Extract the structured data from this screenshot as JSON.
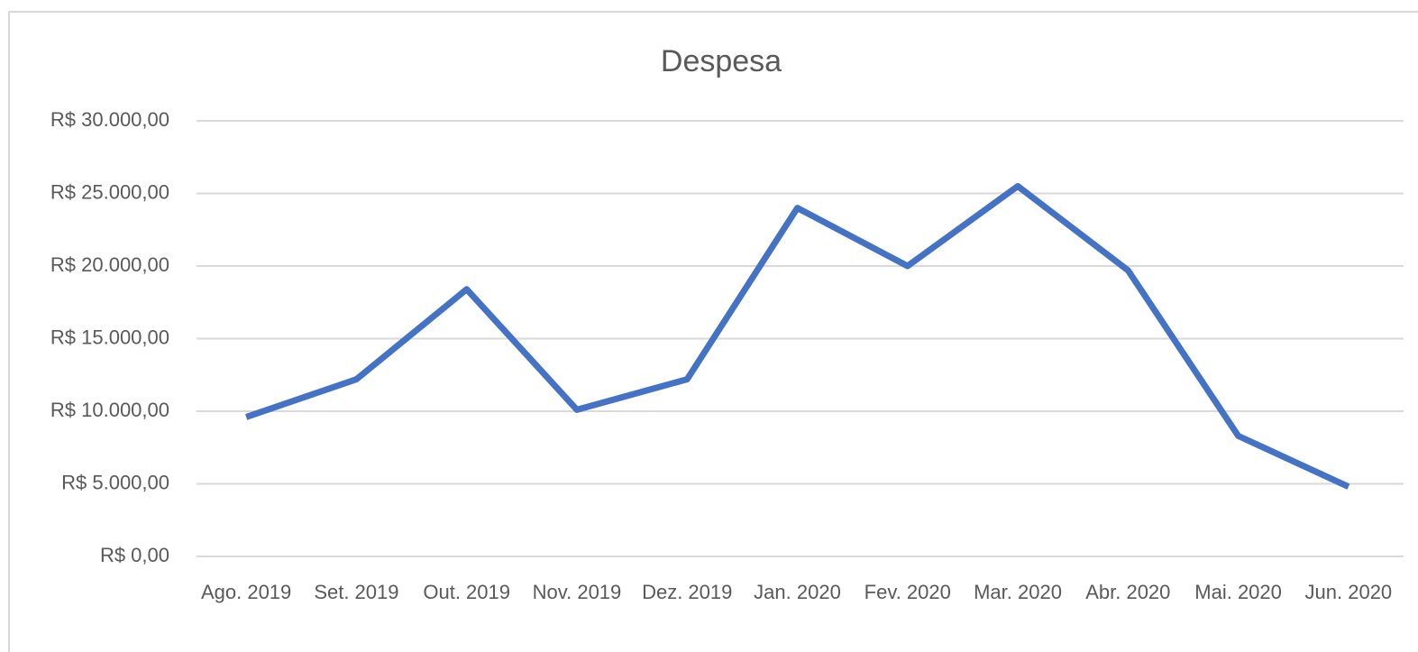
{
  "chart_data": {
    "type": "line",
    "title": "Despesa",
    "categories": [
      "Ago. 2019",
      "Set. 2019",
      "Out. 2019",
      "Nov. 2019",
      "Dez. 2019",
      "Jan. 2020",
      "Fev. 2020",
      "Mar. 2020",
      "Abr. 2020",
      "Mai. 2020",
      "Jun. 2020"
    ],
    "series": [
      {
        "name": "Despesa",
        "color": "#4472c4",
        "values": [
          9600,
          12200,
          18400,
          10100,
          12200,
          24000,
          20000,
          25500,
          19700,
          8300,
          4800
        ]
      }
    ],
    "ylim": [
      0,
      30000
    ],
    "yticks": [
      {
        "value": 0,
        "label": "R$ 0,00"
      },
      {
        "value": 5000,
        "label": "R$ 5.000,00"
      },
      {
        "value": 10000,
        "label": "R$ 10.000,00"
      },
      {
        "value": 15000,
        "label": "R$ 15.000,00"
      },
      {
        "value": 20000,
        "label": "R$ 20.000,00"
      },
      {
        "value": 25000,
        "label": "R$ 25.000,00"
      },
      {
        "value": 30000,
        "label": "R$ 30.000,00"
      }
    ],
    "grid": true
  }
}
